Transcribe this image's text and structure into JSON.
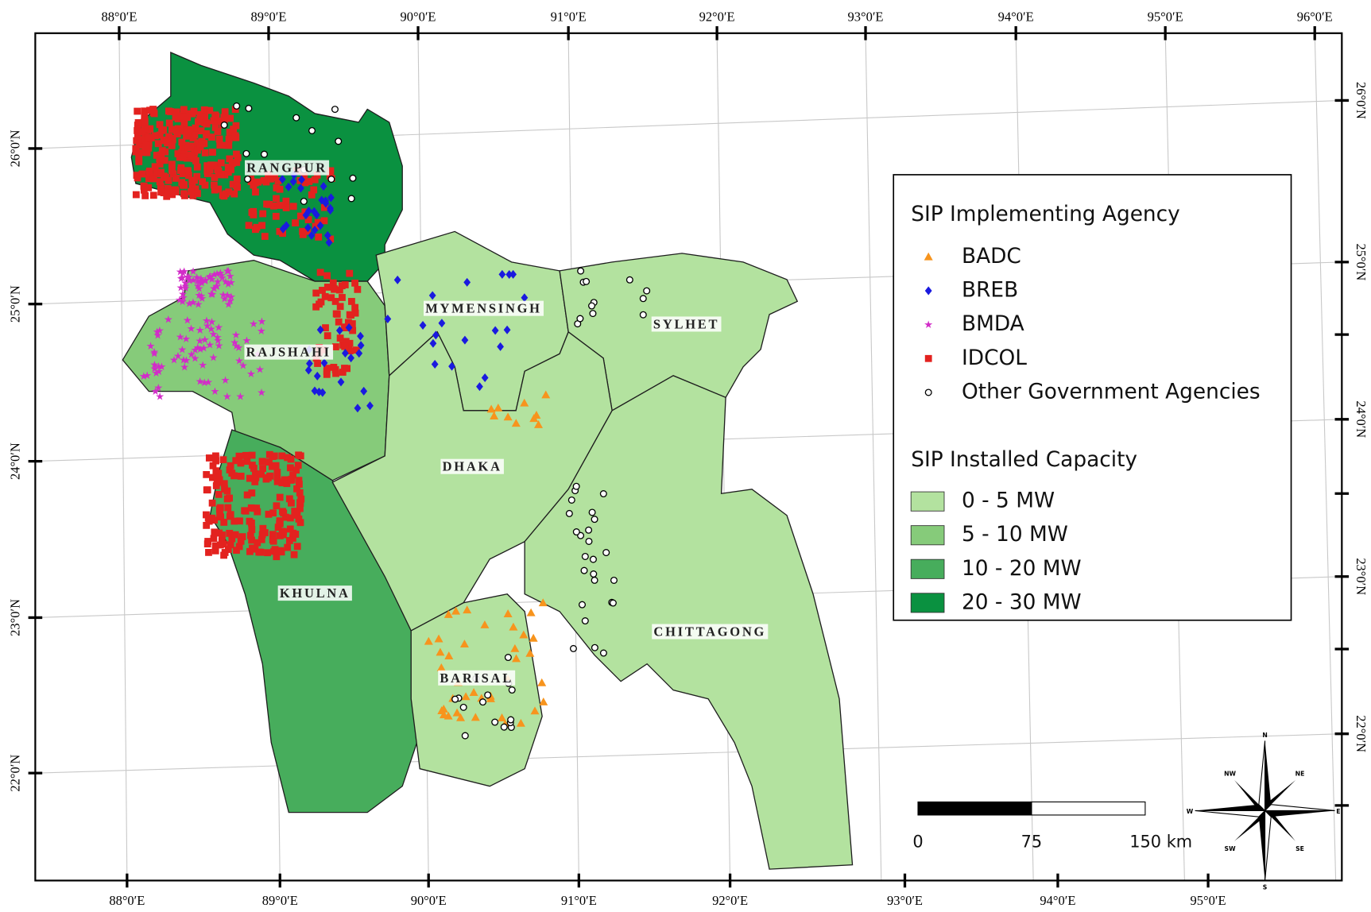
{
  "map": {
    "top_labels": [
      "88°0′E",
      "89°0′E",
      "90°0′E",
      "91°0′E",
      "92°0′E",
      "93°0′E",
      "94°0′E",
      "95°0′E",
      "96°0′E"
    ],
    "bottom_labels": [
      "88°0′E",
      "89°0′E",
      "90°0′E",
      "91°0′E",
      "92°0′E",
      "93°0′E",
      "94°0′E",
      "95°0′E"
    ],
    "left_labels": [
      "26°0′N",
      "25°0′N",
      "24°0′N",
      "23°0′N",
      "22°0′N"
    ],
    "right_labels": [
      "26°0′N",
      "25°0′N",
      "24°0′N",
      "23°0′N",
      "22°0′N"
    ],
    "divisions": [
      "RANGPUR",
      "RAJSHAHI",
      "MYMENSINGH",
      "SYLHET",
      "DHAKA",
      "KHULNA",
      "BARISAL",
      "CHITTAGONG"
    ],
    "legend": {
      "agency_title": "SIP Implementing Agency",
      "agencies": [
        {
          "label": "BADC",
          "color": "#f7941d"
        },
        {
          "label": "BREB",
          "color": "#1a1adf"
        },
        {
          "label": "BMDA",
          "color": "#d22cc8"
        },
        {
          "label": "IDCOL",
          "color": "#e3221f"
        },
        {
          "label": "Other Government Agencies",
          "color": "#ffffff"
        }
      ],
      "capacity_title": "SIP Installed Capacity",
      "classes": [
        {
          "label": "0 - 5 MW",
          "color": "#b3e29f"
        },
        {
          "label": "5 - 10 MW",
          "color": "#86cb7a"
        },
        {
          "label": "10 - 20 MW",
          "color": "#47ad5c"
        },
        {
          "label": "20 - 30 MW",
          "color": "#0a9140"
        }
      ]
    },
    "scale_bar": {
      "labels": [
        "0",
        "75",
        "150 km"
      ]
    },
    "compass": [
      "N",
      "NE",
      "E",
      "SE",
      "S",
      "SW",
      "W",
      "NW"
    ]
  }
}
